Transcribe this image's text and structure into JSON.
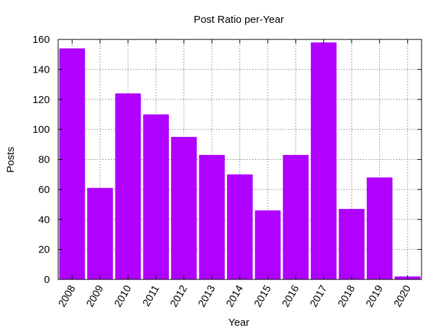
{
  "chart_data": {
    "type": "bar",
    "title": "Post Ratio per-Year",
    "xlabel": "Year",
    "ylabel": "Posts",
    "categories": [
      "2008",
      "2009",
      "2010",
      "2011",
      "2012",
      "2013",
      "2014",
      "2015",
      "2016",
      "2017",
      "2018",
      "2019",
      "2020"
    ],
    "values": [
      154,
      61,
      124,
      110,
      95,
      83,
      70,
      46,
      83,
      158,
      47,
      68,
      2
    ],
    "ylim": [
      0,
      160
    ],
    "yticks": [
      0,
      20,
      40,
      60,
      80,
      100,
      120,
      140,
      160
    ],
    "grid": true,
    "bar_color": "#b000ff"
  }
}
